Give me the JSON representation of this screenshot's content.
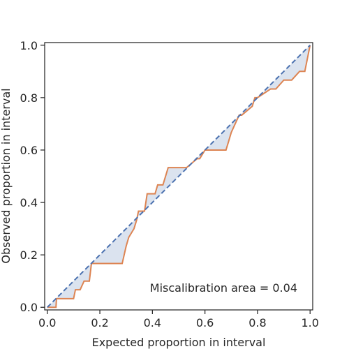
{
  "chart_data": {
    "type": "line",
    "title": "",
    "xlabel": "Expected proportion in interval",
    "ylabel": "Observed proportion in interval",
    "xlim": [
      -0.01,
      1.01
    ],
    "ylim": [
      -0.01,
      1.01
    ],
    "xticks": [
      0.0,
      0.2,
      0.4,
      0.6,
      0.8,
      1.0
    ],
    "yticks": [
      0.0,
      0.2,
      0.4,
      0.6,
      0.8,
      1.0
    ],
    "xtick_labels": [
      "0.0",
      "0.2",
      "0.4",
      "0.6",
      "0.8",
      "1.0"
    ],
    "ytick_labels": [
      "0.0",
      "0.2",
      "0.4",
      "0.6",
      "0.8",
      "1.0"
    ],
    "grid": false,
    "annotation": "Miscalibration area = 0.04",
    "series": [
      {
        "style": "dashed",
        "color": "#4c72b0",
        "x": [
          0.0,
          1.0
        ],
        "y": [
          0.0,
          1.0
        ]
      },
      {
        "style": "solid",
        "color": "#dd8452",
        "x": [
          0.0,
          0.033,
          0.035,
          0.1,
          0.107,
          0.125,
          0.14,
          0.16,
          0.168,
          0.285,
          0.3,
          0.31,
          0.33,
          0.34,
          0.347,
          0.37,
          0.38,
          0.41,
          0.42,
          0.44,
          0.46,
          0.53,
          0.57,
          0.58,
          0.6,
          0.61,
          0.68,
          0.69,
          0.7,
          0.73,
          0.74,
          0.78,
          0.79,
          0.8,
          0.85,
          0.87,
          0.9,
          0.93,
          0.96,
          0.98,
          1.0
        ],
        "y": [
          0.0,
          0.0,
          0.033,
          0.033,
          0.067,
          0.067,
          0.1,
          0.1,
          0.167,
          0.167,
          0.233,
          0.267,
          0.3,
          0.333,
          0.367,
          0.367,
          0.433,
          0.433,
          0.467,
          0.467,
          0.533,
          0.533,
          0.567,
          0.567,
          0.6,
          0.6,
          0.6,
          0.633,
          0.667,
          0.733,
          0.733,
          0.767,
          0.8,
          0.8,
          0.833,
          0.833,
          0.867,
          0.867,
          0.9,
          0.9,
          1.0
        ]
      }
    ]
  }
}
